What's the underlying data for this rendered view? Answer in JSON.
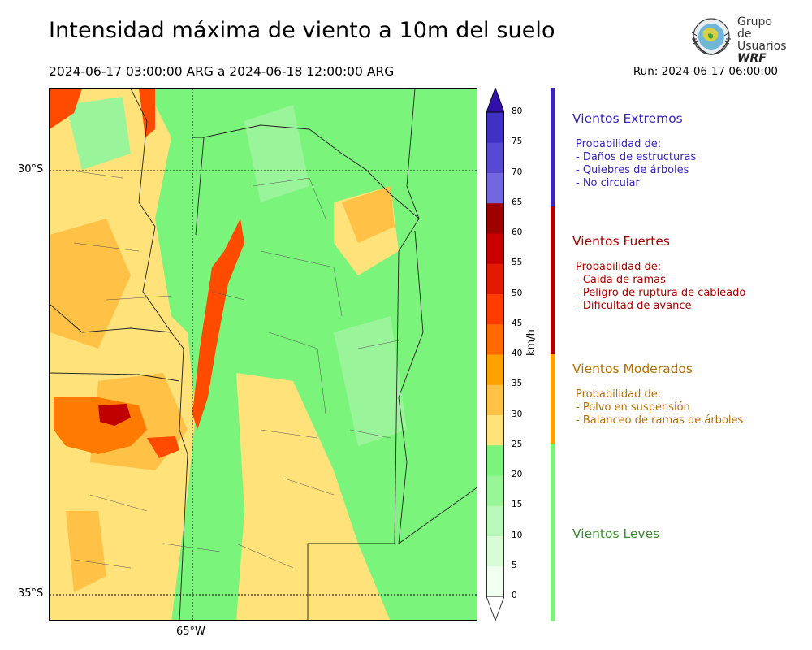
{
  "header": {
    "title": "Intensidad máxima de viento a 10m del suelo",
    "period": "2024-06-17 03:00:00 ARG  a  2024-06-18 12:00:00 ARG",
    "run": "Run: 2024-06-17 06:00:00"
  },
  "logo": {
    "line1": "Grupo de",
    "line2": "Usuarios",
    "line3": "WRF"
  },
  "map": {
    "lat_labels": [
      "30°S",
      "35°S"
    ],
    "lon_labels": [
      "65°W"
    ],
    "colors": {
      "leves": "#7af47a",
      "leves_light": "#9af59a",
      "moderado": "#ffe27a",
      "moderado_dark": "#ffc247",
      "fuerte_orange": "#ff9a00",
      "fuerte_red": "#ff4b00",
      "extremo_red": "#c00000"
    }
  },
  "colorbar": {
    "unit": "km/h",
    "ticks": [
      "0",
      "5",
      "10",
      "15",
      "20",
      "25",
      "30",
      "35",
      "40",
      "45",
      "50",
      "55",
      "60",
      "65",
      "70",
      "75",
      "80"
    ],
    "colors": [
      "#f0fff0",
      "#d8fbd8",
      "#b8f8b8",
      "#98f598",
      "#7af47a",
      "#ffe27a",
      "#ffc247",
      "#ffa200",
      "#ff6a00",
      "#ff3c00",
      "#e11a00",
      "#c80000",
      "#9e0000",
      "#7466e0",
      "#5849d2",
      "#4030c4",
      "#3010a8"
    ]
  },
  "categories": [
    {
      "name": "Vientos Extremos",
      "color": "#3a26b8",
      "desc": [
        "Probabilidad de:",
        "- Daños de estructuras",
        "- Quiebres de árboles",
        "- No circular"
      ]
    },
    {
      "name": "Vientos Fuertes",
      "color": "#a80000",
      "desc": [
        "Probabilidad de:",
        "- Caida de ramas",
        "- Peligro de ruptura de cableado",
        "- Dificultad de avance"
      ]
    },
    {
      "name": "Vientos Moderados",
      "color": "#b07000",
      "desc": [
        "Probabilidad de:",
        "- Polvo en suspensión",
        "- Balanceo de ramas de árboles"
      ]
    },
    {
      "name": "Vientos Leves",
      "color": "#3d8a2e",
      "desc": []
    }
  ]
}
